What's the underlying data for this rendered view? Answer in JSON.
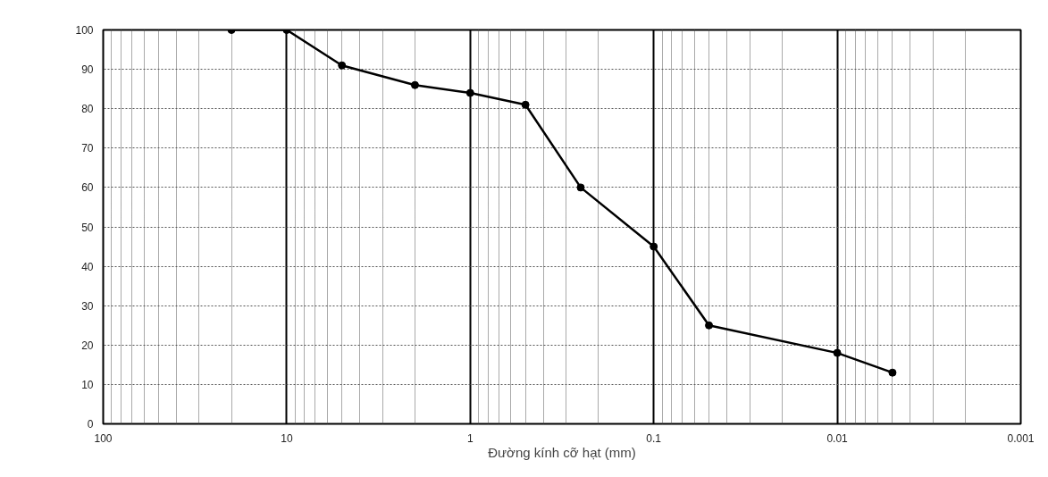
{
  "chart_data": {
    "type": "line",
    "xlabel": "Đường kính cỡ hạt (mm)",
    "x": [
      20,
      10,
      5,
      2,
      1,
      0.5,
      0.25,
      0.1,
      0.05,
      0.01,
      0.005
    ],
    "values": [
      100,
      100,
      91,
      86,
      84,
      81,
      60,
      45,
      25,
      18,
      13
    ],
    "color": "#000000",
    "xlim": [
      100,
      0.001
    ],
    "xticks": [
      100,
      10,
      1,
      0.1,
      0.01,
      0.001
    ],
    "ylim": [
      0,
      100
    ],
    "yticks": [
      0,
      10,
      20,
      30,
      40,
      50,
      60,
      70,
      80,
      90,
      100
    ],
    "log": "x",
    "grid": true,
    "marker": "circle",
    "line_style": "solid"
  }
}
